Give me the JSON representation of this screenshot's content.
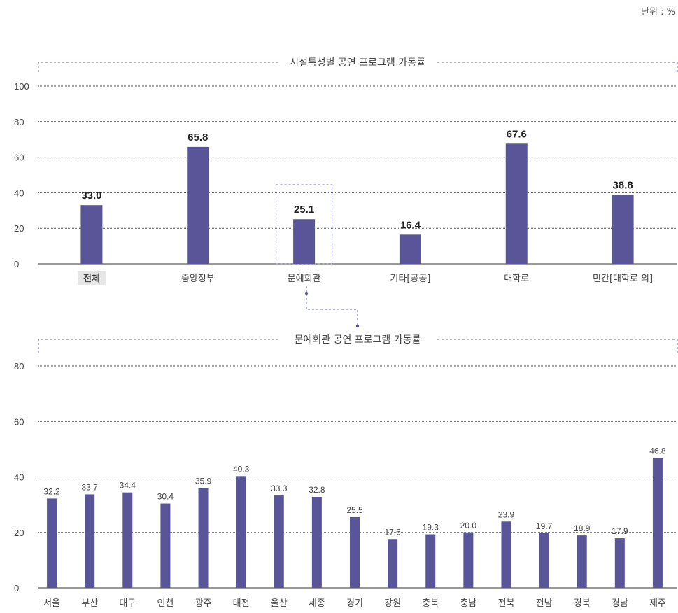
{
  "unit_label": "단위 : %",
  "colors": {
    "bar": "#5a5498",
    "grid": "#555555",
    "dashed_frame": "#6a68b0",
    "highlight_bg": "#e6e6e6"
  },
  "chart_data": [
    {
      "type": "bar",
      "title": "시설특성별 공연 프로그램 가동률",
      "categories": [
        "전체",
        "중앙정부",
        "문예회관",
        "기타[공공]",
        "대학로",
        "민간[대학로 외]"
      ],
      "values": [
        33.0,
        65.8,
        25.1,
        16.4,
        67.6,
        38.8
      ],
      "value_labels": [
        "33.0",
        "65.8",
        "25.1",
        "16.4",
        "67.6",
        "38.8"
      ],
      "yticks": [
        "0",
        "20",
        "40",
        "60",
        "80",
        "100"
      ],
      "ylim": [
        0,
        100
      ],
      "highlight_category": "전체",
      "focus_category": "문예회관",
      "grid": true
    },
    {
      "type": "bar",
      "title": "문예회관 공연 프로그램 가동률",
      "categories": [
        "서울",
        "부산",
        "대구",
        "인천",
        "광주",
        "대전",
        "울산",
        "세종",
        "경기",
        "강원",
        "충북",
        "충남",
        "전북",
        "전남",
        "경북",
        "경남",
        "제주"
      ],
      "values": [
        32.2,
        33.7,
        34.4,
        30.4,
        35.9,
        40.3,
        33.3,
        32.8,
        25.5,
        17.6,
        19.3,
        20.0,
        23.9,
        19.7,
        18.9,
        17.9,
        46.8
      ],
      "value_labels": [
        "32.2",
        "33.7",
        "34.4",
        "30.4",
        "35.9",
        "40.3",
        "33.3",
        "32.8",
        "25.5",
        "17.6",
        "19.3",
        "20.0",
        "23.9",
        "19.7",
        "18.9",
        "17.9",
        "46.8"
      ],
      "yticks": [
        "0",
        "20",
        "40",
        "60",
        "80"
      ],
      "ylim": [
        0,
        80
      ],
      "grid": true
    }
  ]
}
